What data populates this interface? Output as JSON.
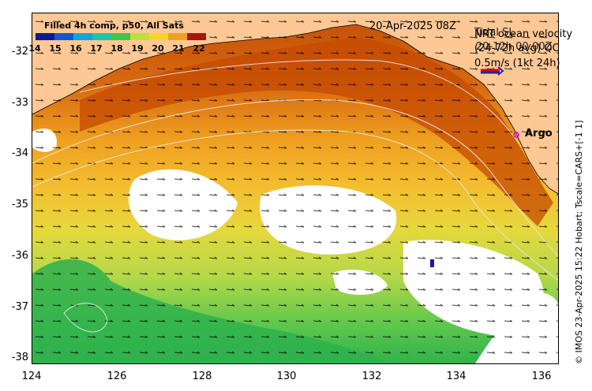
{
  "map": {
    "title": "Filled 4h comp, p50, All Sats",
    "date": "20-Apr-2025 08Z",
    "legend_lines": [
      "NRT ocean velocity",
      "(24-72h avg) QC",
      "0.5m/s (1kt 24h)"
    ],
    "legend_overlap_text": [
      "Tidal SL",
      "20-12h 00:00Z"
    ],
    "argo_label": "Argo",
    "credit": "© IMOS 23-Apr-2025 15:22 Hobart; Tscale=CARS+[-1 1]",
    "colorbar_ticks": [
      "14",
      "15",
      "16",
      "17",
      "18",
      "19",
      "20",
      "21",
      "22"
    ],
    "lon_ticks": [
      "124",
      "126",
      "128",
      "130",
      "132",
      "134",
      "136"
    ],
    "lat_ticks": [
      "-32",
      "-33",
      "-34",
      "-35",
      "-36",
      "-37",
      "-38"
    ],
    "colors": {
      "land": "#fdc894",
      "warm": "#c44a00",
      "cool": "#29b24a",
      "coast_line": "#000000"
    }
  }
}
